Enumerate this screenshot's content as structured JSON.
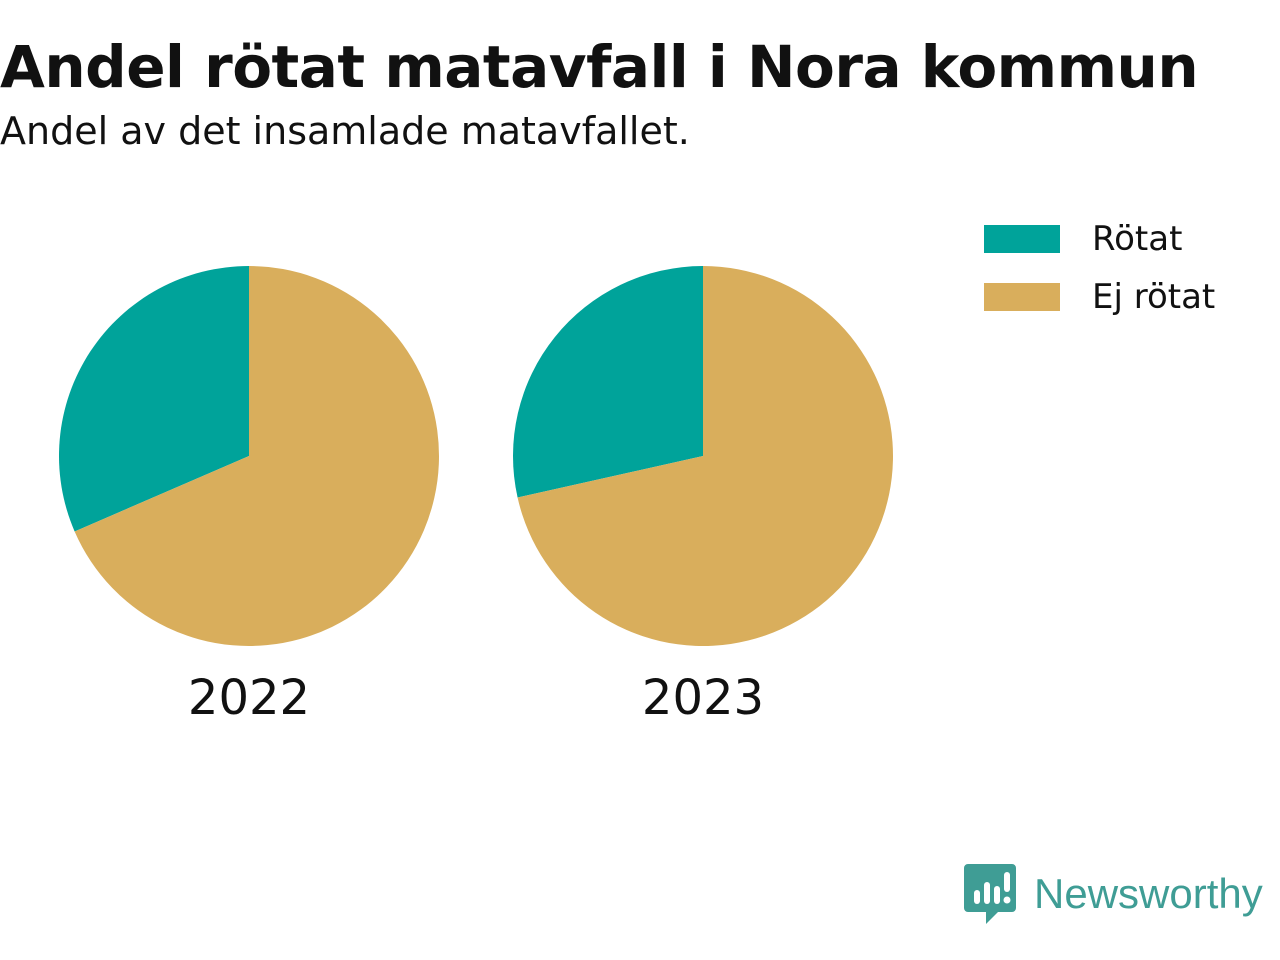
{
  "title": "Andel rötat matavfall i Nora kommun",
  "subtitle": "Andel av det insamlade matavfallet.",
  "legend": [
    {
      "label": "Rötat",
      "color": "#00a39a"
    },
    {
      "label": "Ej rötat",
      "color": "#d9ae5c"
    }
  ],
  "brand": {
    "label": "Newsworthy",
    "color": "#3f9d95",
    "icon": "newsworthy-logo-icon"
  },
  "chart_data": [
    {
      "type": "pie",
      "label": "2022",
      "slices": [
        {
          "name": "Rötat",
          "value": 31.5,
          "color": "#00a39a"
        },
        {
          "name": "Ej rötat",
          "value": 68.5,
          "color": "#d9ae5c"
        }
      ]
    },
    {
      "type": "pie",
      "label": "2023",
      "slices": [
        {
          "name": "Rötat",
          "value": 28.5,
          "color": "#00a39a"
        },
        {
          "name": "Ej rötat",
          "value": 71.5,
          "color": "#d9ae5c"
        }
      ]
    }
  ]
}
